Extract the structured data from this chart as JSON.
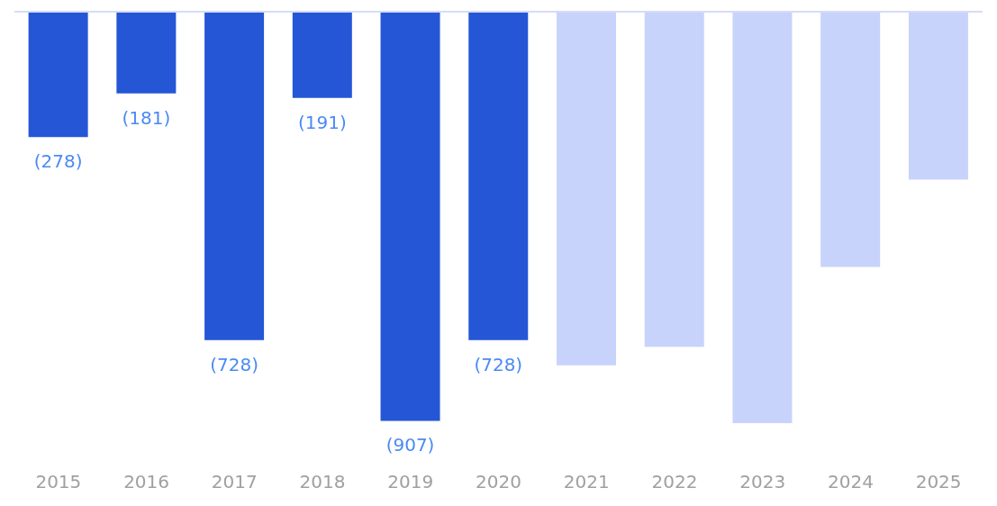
{
  "chart_data": {
    "type": "bar",
    "categories": [
      "2015",
      "2016",
      "2017",
      "2018",
      "2019",
      "2020",
      "2021",
      "2022",
      "2023",
      "2024",
      "2025"
    ],
    "values": [
      -278,
      -181,
      -728,
      -191,
      -907,
      -728,
      -784,
      -743,
      -912,
      -566,
      -372
    ],
    "colors": [
      "#2456d6",
      "#2456d6",
      "#2456d6",
      "#2456d6",
      "#2456d6",
      "#2456d6",
      "#c8d3fc",
      "#c8d3fc",
      "#c8d3fc",
      "#c8d3fc",
      "#c8d3fc"
    ],
    "value_labels": [
      "(278)",
      "(181)",
      "(728)",
      "(191)",
      "(907)",
      "(728)",
      null,
      null,
      null,
      null,
      null
    ]
  }
}
